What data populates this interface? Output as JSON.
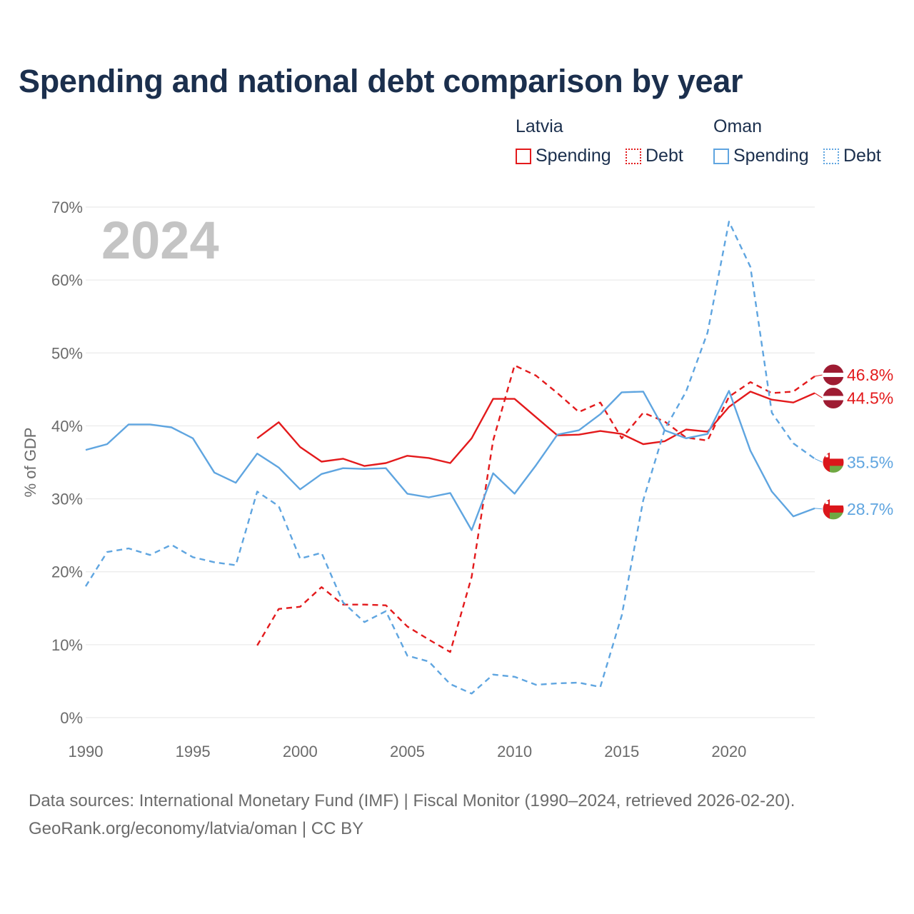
{
  "title": "Spending and national debt comparison by year",
  "legend": {
    "groups": [
      {
        "country": "Latvia",
        "color": "#e31a1c",
        "items": [
          "Spending",
          "Debt"
        ]
      },
      {
        "country": "Oman",
        "color": "#5fa5e0",
        "items": [
          "Spending",
          "Debt"
        ]
      }
    ]
  },
  "footer": {
    "source": "Data sources: International Monetary Fund (IMF) | Fiscal Monitor (1990–2024, retrieved 2026-02-20).",
    "credit": "GeoRank.org/economy/latvia/oman | CC BY"
  },
  "chart_data": {
    "type": "line",
    "year_label": "2024",
    "ylabel": "% of GDP",
    "ylim": [
      0,
      70
    ],
    "xlim": [
      1990,
      2024
    ],
    "y_ticks": [
      "0%",
      "10%",
      "20%",
      "30%",
      "40%",
      "50%",
      "60%",
      "70%"
    ],
    "x_ticks": [
      "1990",
      "1995",
      "2000",
      "2005",
      "2010",
      "2015",
      "2020"
    ],
    "grid": true,
    "series": [
      {
        "name": "Latvia Spending",
        "color": "#e31a1c",
        "dash": "solid",
        "start": 1998,
        "values": [
          38.3,
          40.5,
          37.1,
          35.1,
          35.5,
          34.5,
          34.9,
          35.9,
          35.6,
          34.9,
          38.3,
          43.7,
          43.7,
          41.2,
          38.7,
          38.8,
          39.3,
          38.9,
          37.5,
          37.9,
          39.5,
          39.2,
          42.6,
          44.7,
          43.6,
          43.2,
          44.5
        ],
        "end_label": "44.5%",
        "flag": "latvia"
      },
      {
        "name": "Latvia Debt",
        "color": "#e31a1c",
        "dash": "dashed",
        "start": 1998,
        "values": [
          9.9,
          14.9,
          15.2,
          17.9,
          15.5,
          15.5,
          15.4,
          12.5,
          10.7,
          9.0,
          19.3,
          38.0,
          48.3,
          46.9,
          44.5,
          41.9,
          43.2,
          38.3,
          41.8,
          40.6,
          38.4,
          38.0,
          44.0,
          46.0,
          44.5,
          44.7,
          46.8
        ],
        "end_label": "46.8%",
        "flag": "latvia"
      },
      {
        "name": "Oman Spending",
        "color": "#5fa5e0",
        "dash": "solid",
        "start": 1990,
        "values": [
          36.7,
          37.5,
          40.2,
          40.2,
          39.8,
          38.3,
          33.6,
          32.2,
          36.2,
          34.3,
          31.3,
          33.4,
          34.2,
          34.1,
          34.2,
          30.7,
          30.2,
          30.8,
          25.7,
          33.5,
          30.7,
          34.6,
          38.8,
          39.4,
          41.6,
          44.6,
          44.7,
          39.4,
          38.3,
          38.9,
          44.8,
          36.6,
          31.0,
          27.6,
          28.7
        ],
        "end_label": "28.7%",
        "flag": "oman"
      },
      {
        "name": "Oman Debt",
        "color": "#5fa5e0",
        "dash": "dashed",
        "start": 1990,
        "values": [
          18.0,
          22.7,
          23.2,
          22.3,
          23.7,
          22.0,
          21.3,
          20.9,
          31.0,
          29.0,
          21.8,
          22.6,
          15.8,
          13.1,
          14.6,
          8.5,
          7.7,
          4.6,
          3.3,
          5.9,
          5.6,
          4.5,
          4.7,
          4.8,
          4.2,
          14.0,
          29.8,
          39.5,
          44.7,
          52.8,
          68.0,
          61.8,
          41.8,
          37.6,
          35.5
        ],
        "end_label": "35.5%",
        "flag": "oman"
      }
    ]
  }
}
